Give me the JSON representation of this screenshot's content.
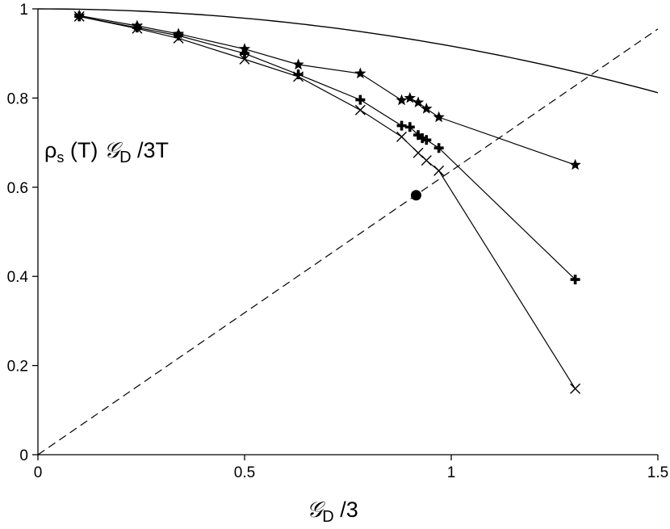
{
  "chart_data": {
    "type": "line",
    "title": "",
    "xlabel": "𝒢D/3",
    "ylabel": "ρs(T) 𝒢D/3T",
    "ylabel_parts": {
      "rho": "ρ",
      "rho_sub": "s",
      "mid": " (T) ",
      "g": "𝒢",
      "g_sub": "D",
      "end": " /3T"
    },
    "xlabel_parts": {
      "g": "𝒢",
      "g_sub": "D",
      "end": " /3"
    },
    "xlim": [
      0,
      1.5
    ],
    "ylim": [
      0,
      1
    ],
    "x_ticks": [
      0,
      0.5,
      1,
      1.5
    ],
    "x_tick_labels": [
      "0",
      "0.5",
      "1",
      "1.5"
    ],
    "y_ticks": [
      0,
      0.2,
      0.4,
      0.6,
      0.8,
      1
    ],
    "y_tick_labels": [
      "0",
      "0.2",
      "0.4",
      "0.6",
      "0.8",
      "1"
    ],
    "series": [
      {
        "name": "star",
        "marker": "star",
        "x": [
          0.1,
          0.24,
          0.34,
          0.5,
          0.63,
          0.78,
          0.88,
          0.9,
          0.92,
          0.94,
          0.97,
          1.3
        ],
        "y": [
          0.985,
          0.962,
          0.944,
          0.91,
          0.875,
          0.855,
          0.795,
          0.8,
          0.79,
          0.776,
          0.757,
          0.65
        ]
      },
      {
        "name": "plus",
        "marker": "plus",
        "x": [
          0.1,
          0.24,
          0.34,
          0.5,
          0.63,
          0.78,
          0.88,
          0.9,
          0.92,
          0.93,
          0.94,
          0.97,
          1.3
        ],
        "y": [
          0.983,
          0.958,
          0.94,
          0.9,
          0.853,
          0.796,
          0.738,
          0.735,
          0.717,
          0.71,
          0.706,
          0.688,
          0.393
        ]
      },
      {
        "name": "cross",
        "marker": "cross",
        "x": [
          0.1,
          0.24,
          0.34,
          0.5,
          0.63,
          0.78,
          0.88,
          0.92,
          0.94,
          0.97,
          1.3
        ],
        "y": [
          0.983,
          0.956,
          0.934,
          0.887,
          0.848,
          0.773,
          0.713,
          0.677,
          0.66,
          0.637,
          0.148
        ]
      }
    ],
    "reference_curve": {
      "name": "solid curve",
      "y_at_0": 1.0,
      "y_at_1.5": 0.812
    },
    "diagonal": {
      "name": "dashed line",
      "x": [
        0,
        1.5
      ],
      "y": [
        0,
        0.955
      ]
    },
    "critical_point": {
      "marker": "filled circle",
      "x": 0.915,
      "y": 0.582
    }
  }
}
